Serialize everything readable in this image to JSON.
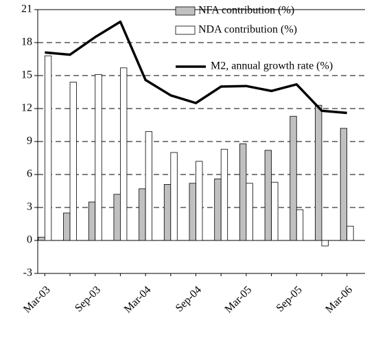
{
  "chart_data": {
    "type": "bar_line",
    "categories": [
      "Mar-03",
      null,
      "Sep-03",
      null,
      "Mar-04",
      null,
      "Sep-04",
      null,
      "Mar-05",
      null,
      "Sep-05",
      null,
      "Mar-06"
    ],
    "series": [
      {
        "name": "NFA contribution (%)",
        "type": "bar",
        "color": "#c0c0c0",
        "values": [
          0.3,
          2.5,
          3.5,
          4.2,
          4.7,
          5.1,
          5.2,
          5.6,
          8.8,
          8.2,
          11.3,
          12.3,
          10.2
        ]
      },
      {
        "name": "NDA contribution (%)",
        "type": "bar",
        "color": "#ffffff",
        "values": [
          16.8,
          14.4,
          15.1,
          15.7,
          9.9,
          8.0,
          7.2,
          8.3,
          5.2,
          5.3,
          2.8,
          -0.5,
          1.3
        ]
      },
      {
        "name": "M2, annual growth rate (%)",
        "type": "line",
        "color": "#000000",
        "values": [
          17.1,
          16.9,
          18.5,
          19.9,
          14.6,
          13.2,
          12.5,
          14.0,
          14.05,
          13.6,
          14.2,
          11.8,
          11.6
        ]
      }
    ],
    "ylim": [
      -3,
      21
    ],
    "yticks": [
      -3,
      0,
      3,
      6,
      9,
      12,
      15,
      18,
      21
    ],
    "grid": true
  }
}
